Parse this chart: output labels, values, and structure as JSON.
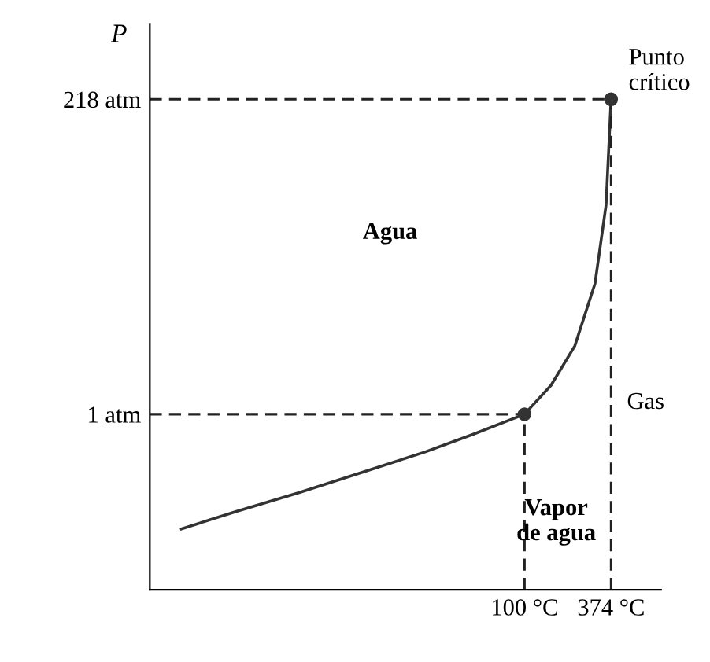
{
  "chart_data": {
    "type": "line",
    "ylabel": "P",
    "series": [
      {
        "color": "#333333",
        "x": [
          -986,
          -812,
          -613,
          -414,
          -215,
          -65,
          100,
          184,
          259,
          323,
          358,
          374
        ],
        "values": [
          -78,
          -66,
          -53,
          -39,
          -25,
          -13,
          1,
          21,
          48,
          91,
          145,
          218
        ]
      },
      {
        "type": "scatter",
        "color": "#333333",
        "x": [
          100,
          374
        ],
        "values": [
          1,
          218
        ],
        "marker": "circle"
      }
    ],
    "xlim": [
      -1086,
      532
    ],
    "ylim": [
      -120,
      270
    ],
    "xticks": [
      {
        "value": 100,
        "label": "100 °C"
      },
      {
        "value": 374,
        "label": "374 °C"
      }
    ],
    "yticks": [
      {
        "value": 1,
        "label": "1 atm"
      },
      {
        "value": 218,
        "label": "218 atm"
      }
    ],
    "ref_lines": [
      {
        "axis": "y",
        "value": 1,
        "line_style": "dashed"
      },
      {
        "axis": "y",
        "value": 218,
        "line_style": "dashed"
      },
      {
        "axis": "x",
        "value": 100,
        "line_style": "dashed"
      },
      {
        "axis": "x",
        "value": 374,
        "line_style": "dashed"
      }
    ],
    "annotations": [
      {
        "text": "Punto\ncrítico",
        "x": 374,
        "y": 218
      },
      "Agua",
      "Gas",
      "Vapor\nde agua"
    ],
    "grid": false,
    "legend": false
  }
}
